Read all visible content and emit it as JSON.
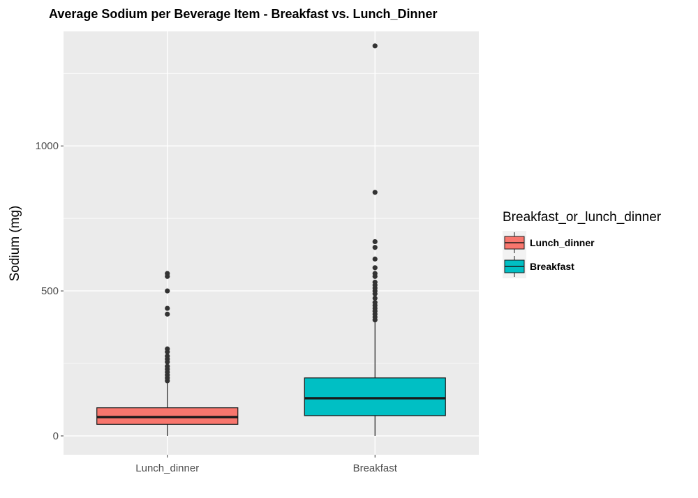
{
  "chart_data": {
    "type": "box",
    "title": "Average Sodium per Beverage Item - Breakfast vs. Lunch_Dinner",
    "xlabel": "",
    "ylabel": "Sodium (mg)",
    "ylim": [
      -65,
      1395
    ],
    "y_ticks": [
      0,
      500,
      1000
    ],
    "y_tick_labels": [
      "0",
      "500",
      "1000"
    ],
    "y_minor_ticks": [
      250,
      750,
      1250
    ],
    "grid": true,
    "categories": [
      "Lunch_dinner",
      "Breakfast"
    ],
    "legend": {
      "title": "Breakfast_or_lunch_dinner",
      "position": "right",
      "entries": [
        "Lunch_dinner",
        "Breakfast"
      ]
    },
    "series": [
      {
        "category": "Lunch_dinner",
        "color": "#F8766D",
        "whisker_low": 0,
        "q1": 40,
        "median": 65,
        "q3": 97,
        "whisker_high": 185,
        "outliers": [
          190,
          200,
          210,
          220,
          230,
          240,
          255,
          265,
          275,
          290,
          300,
          420,
          440,
          500,
          550,
          560
        ]
      },
      {
        "category": "Breakfast",
        "color": "#00BFC4",
        "whisker_low": 0,
        "q1": 70,
        "median": 130,
        "q3": 200,
        "whisker_high": 395,
        "outliers": [
          400,
          410,
          420,
          430,
          440,
          450,
          460,
          475,
          490,
          500,
          510,
          520,
          530,
          550,
          560,
          580,
          610,
          650,
          670,
          840,
          1345
        ]
      }
    ]
  }
}
